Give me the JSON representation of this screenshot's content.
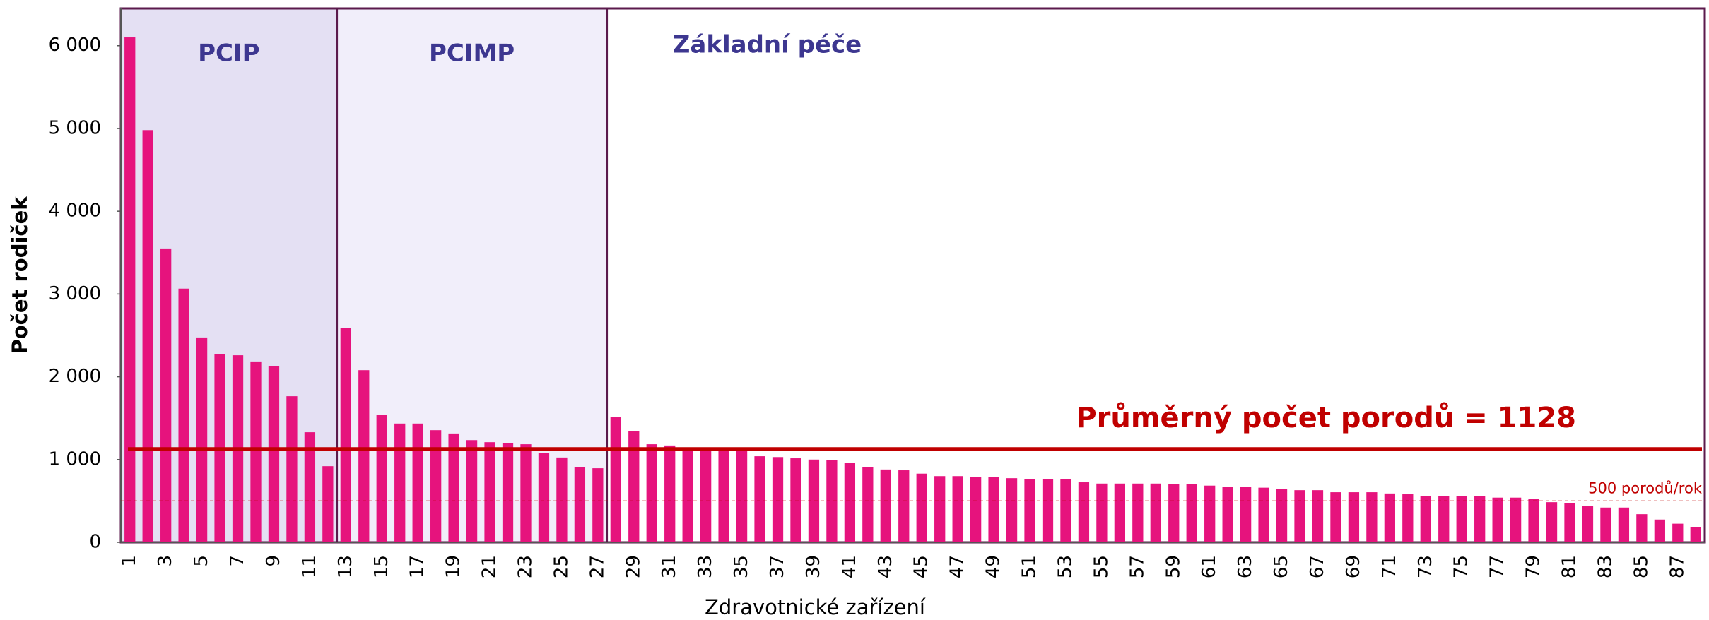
{
  "chart_data": {
    "type": "bar",
    "x_label": "Zdravotnické zařízení",
    "y_label": "Počet rodiček",
    "categories": [
      "1",
      null,
      "3",
      null,
      "5",
      null,
      "7",
      null,
      "9",
      null,
      "11",
      null,
      "13",
      null,
      "15",
      null,
      "17",
      null,
      "19",
      null,
      "21",
      null,
      "23",
      null,
      "25",
      null,
      "27",
      null,
      "29",
      null,
      "31",
      null,
      "33",
      null,
      "35",
      null,
      "37",
      null,
      "39",
      null,
      "41",
      null,
      "43",
      null,
      "45",
      null,
      "47",
      null,
      "49",
      null,
      "51",
      null,
      "53",
      null,
      "55",
      null,
      "57",
      null,
      "59",
      null,
      "61",
      null,
      "63",
      null,
      "65",
      null,
      "67",
      null,
      "69",
      null,
      "71",
      null,
      "73",
      null,
      "75",
      null,
      "77",
      null,
      "79",
      null,
      "81",
      null,
      "83",
      null,
      "85",
      null,
      "87",
      null
    ],
    "values": [
      6100,
      4980,
      3550,
      3065,
      2475,
      2275,
      2260,
      2185,
      2130,
      1765,
      1330,
      920,
      2590,
      2080,
      1540,
      1435,
      1435,
      1355,
      1315,
      1235,
      1210,
      1195,
      1185,
      1080,
      1025,
      910,
      895,
      1510,
      1340,
      1185,
      1170,
      1145,
      1120,
      1120,
      1120,
      1040,
      1030,
      1015,
      1000,
      990,
      960,
      905,
      880,
      870,
      830,
      800,
      800,
      790,
      790,
      775,
      765,
      765,
      765,
      725,
      710,
      710,
      710,
      710,
      700,
      700,
      685,
      670,
      670,
      660,
      645,
      630,
      630,
      605,
      605,
      605,
      590,
      580,
      555,
      555,
      555,
      555,
      540,
      540,
      525,
      485,
      475,
      435,
      420,
      420,
      340,
      275,
      225,
      185
    ],
    "color": "#e6137d",
    "ylim": [
      0,
      6450
    ],
    "yticks": [
      0,
      {
        "value": 1000,
        "label": "1 000"
      },
      {
        "value": 2000,
        "label": "2 000"
      },
      {
        "value": 3000,
        "label": "3 000"
      },
      {
        "value": 4000,
        "label": "4 000"
      },
      {
        "value": 5000,
        "label": "5 000"
      },
      {
        "value": 6000,
        "label": "6 000"
      }
    ],
    "regions": [
      {
        "label": "PCIP",
        "start": 1,
        "end": 12,
        "color": "#e4e0f3"
      },
      {
        "label": "PCIMP",
        "start": 13,
        "end": 27,
        "color": "#f1eefa"
      },
      {
        "label": "Základní péče",
        "start": 28,
        "end": 88,
        "color": "#ffffff"
      }
    ],
    "reference_lines": [
      {
        "value": 1128,
        "label": "Průměrný počet porodů = 1128",
        "color": "#c00000",
        "dashed": false
      },
      {
        "value": 500,
        "label": "500 porodů/rok",
        "color": "#c00000",
        "dashed": true
      }
    ]
  }
}
